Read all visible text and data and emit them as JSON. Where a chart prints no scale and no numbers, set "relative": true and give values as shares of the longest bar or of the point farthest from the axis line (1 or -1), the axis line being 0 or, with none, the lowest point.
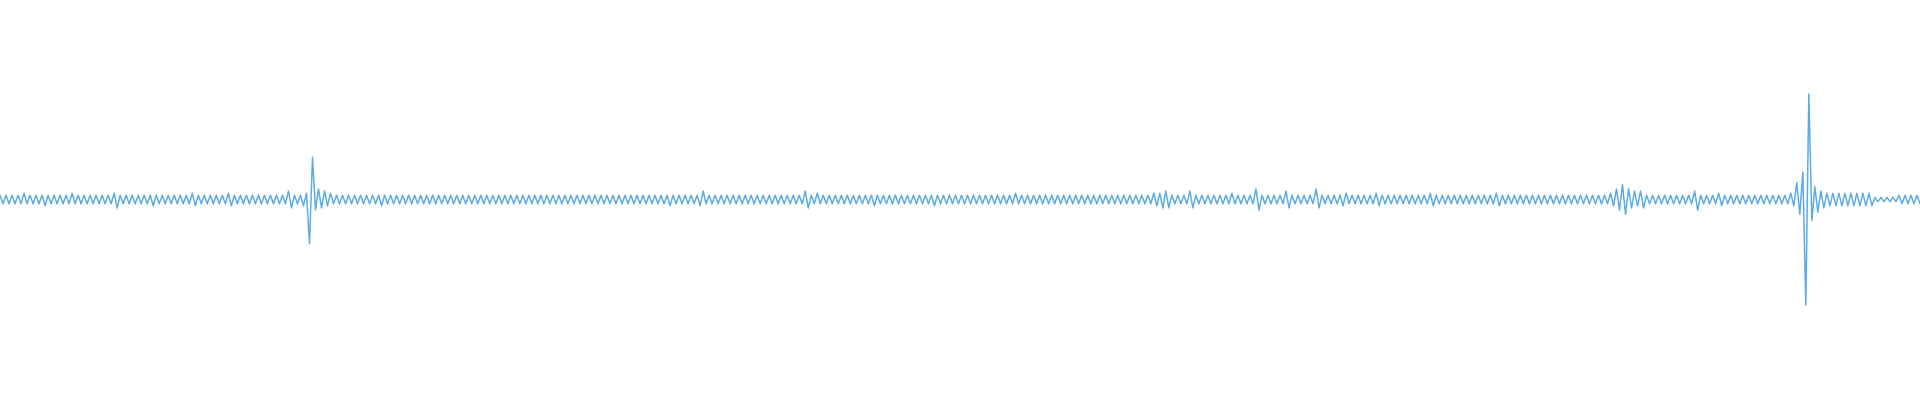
{
  "chart_data": {
    "type": "line",
    "relative": true,
    "marker": "none",
    "line_style": "solid",
    "color": "#5dabe2",
    "categories": [
      null,
      null,
      null,
      null,
      null,
      null,
      null,
      null,
      null,
      null,
      null,
      null,
      null,
      null,
      null,
      null,
      null,
      null,
      null,
      null,
      null,
      null,
      null,
      null,
      null,
      null,
      null,
      null,
      null,
      null,
      null,
      null,
      null,
      null,
      null,
      null,
      null,
      null,
      null,
      null,
      null,
      null,
      null,
      null,
      null,
      null,
      null,
      null,
      null,
      null,
      null,
      null,
      null,
      null,
      null,
      null,
      null,
      null,
      null,
      null,
      null,
      null,
      null,
      null,
      null,
      null,
      null,
      null,
      null,
      null,
      null,
      null,
      null,
      null,
      null,
      null,
      null,
      null,
      null,
      null,
      null,
      null,
      null,
      null,
      null,
      null,
      null,
      null,
      null,
      null,
      null,
      null,
      null,
      null,
      null,
      null,
      null,
      null,
      null,
      null,
      null,
      null,
      null,
      null,
      null,
      null,
      null,
      null,
      null,
      null,
      null,
      null,
      null,
      null,
      null,
      null,
      null,
      null,
      null,
      null,
      null,
      null,
      null,
      null,
      null,
      null,
      null,
      null,
      null,
      null,
      null,
      null,
      null,
      null,
      null,
      null,
      null,
      null,
      null,
      null,
      null,
      null,
      null,
      null,
      null,
      null,
      null,
      null,
      null,
      null,
      null,
      null,
      null,
      null,
      null,
      null,
      null,
      null,
      null,
      null,
      null,
      null,
      null,
      null,
      null,
      null,
      null,
      null,
      null,
      null,
      null,
      null,
      null,
      null,
      null,
      null,
      null,
      null,
      null,
      null,
      null,
      null,
      null,
      null,
      null,
      null,
      null,
      null,
      null,
      null,
      null,
      null,
      null,
      null,
      null,
      null,
      null,
      null,
      null,
      null,
      null,
      null,
      null,
      null,
      null,
      null,
      null,
      null,
      null,
      null,
      null,
      null,
      null,
      null,
      null,
      null,
      null,
      null,
      null,
      null,
      null,
      null,
      null,
      null,
      null,
      null,
      null,
      null,
      null,
      null,
      null,
      null,
      null,
      null,
      null,
      null,
      null,
      null,
      null,
      null,
      null,
      null,
      null,
      null,
      null,
      null,
      null,
      null,
      null,
      null,
      null,
      null,
      null,
      null,
      null,
      null,
      null,
      null,
      null,
      null,
      null,
      null,
      null,
      null,
      null,
      null,
      null,
      null,
      null,
      null,
      null,
      null,
      null,
      null,
      null,
      null,
      null,
      null,
      null,
      null,
      null,
      null,
      null,
      null,
      null,
      null,
      null,
      null,
      null,
      null,
      null,
      null,
      null,
      null,
      null,
      null,
      null,
      null,
      null,
      null,
      null,
      null,
      null,
      null,
      null,
      null,
      null,
      null,
      null,
      null,
      null,
      null,
      null,
      null,
      null,
      null,
      null,
      null,
      null,
      null,
      null,
      null,
      null,
      null,
      null,
      null,
      null,
      null,
      null,
      null,
      null,
      null,
      null,
      null,
      null,
      null,
      null,
      null,
      null,
      null,
      null,
      null,
      null,
      null,
      null,
      null,
      null,
      null,
      null,
      null,
      null,
      null,
      null,
      null,
      null,
      null,
      null,
      null,
      null,
      null,
      null,
      null,
      null,
      null,
      null,
      null,
      null,
      null,
      null,
      null,
      null,
      null,
      null,
      null,
      null,
      null,
      null,
      null,
      null,
      null,
      null,
      null,
      null,
      null,
      null,
      null,
      null,
      null,
      null,
      null,
      null,
      null,
      null,
      null,
      null,
      null,
      null,
      null,
      null,
      null,
      null,
      null,
      null,
      null,
      null,
      null,
      null,
      null,
      null,
      null,
      null,
      null,
      null,
      null,
      null,
      null,
      null,
      null,
      null,
      null,
      null,
      null,
      null,
      null,
      null,
      null,
      null,
      null,
      null,
      null,
      null,
      null,
      null,
      null,
      null,
      null,
      null,
      null,
      null,
      null,
      null,
      null,
      null,
      null,
      null,
      null,
      null,
      null,
      null,
      null,
      null,
      null,
      null,
      null,
      null,
      null,
      null,
      null,
      null,
      null,
      null,
      null,
      null,
      null,
      null,
      null,
      null,
      null,
      null,
      null,
      null,
      null,
      null,
      null,
      null,
      null,
      null,
      null,
      null,
      null,
      null,
      null,
      null,
      null,
      null,
      null,
      null,
      null,
      null,
      null,
      null,
      null,
      null,
      null,
      null,
      null,
      null,
      null,
      null,
      null,
      null,
      null,
      null,
      null,
      null,
      null,
      null,
      null,
      null,
      null,
      null,
      null,
      null,
      null,
      null,
      null,
      null,
      null,
      null,
      null,
      null,
      null,
      null,
      null,
      null,
      null,
      null,
      null,
      null,
      null,
      null,
      null,
      null,
      null,
      null,
      null,
      null,
      null,
      null,
      null,
      null,
      null,
      null,
      null,
      null,
      null,
      null,
      null,
      null,
      null,
      null,
      null,
      null,
      null,
      null,
      null,
      null,
      null,
      null,
      null,
      null,
      null,
      null,
      null,
      null,
      null,
      null,
      null,
      null,
      null,
      null,
      null,
      null,
      null,
      null,
      null,
      null,
      null,
      null,
      null,
      null,
      null,
      null,
      null,
      null,
      null,
      null,
      null,
      null,
      null,
      null,
      null,
      null,
      null,
      null,
      null,
      null,
      null,
      null,
      null,
      null,
      null,
      null,
      null,
      null,
      null,
      null,
      null,
      null,
      null,
      null,
      null,
      null,
      null,
      null,
      null,
      null,
      null,
      null,
      null,
      null,
      null,
      null,
      null,
      null,
      null,
      null,
      null,
      null,
      null,
      null,
      null,
      null,
      null,
      null,
      null,
      null,
      null,
      null,
      null
    ],
    "values": [
      0.52,
      0.48,
      0.52,
      0.48,
      0.52,
      0.48,
      0.52,
      0.48,
      0.53,
      0.48,
      0.52,
      0.48,
      0.52,
      0.48,
      0.52,
      0.47,
      0.52,
      0.48,
      0.52,
      0.48,
      0.52,
      0.48,
      0.52,
      0.48,
      0.53,
      0.48,
      0.52,
      0.48,
      0.52,
      0.48,
      0.52,
      0.48,
      0.52,
      0.48,
      0.52,
      0.48,
      0.52,
      0.48,
      0.53,
      0.46,
      0.52,
      0.48,
      0.52,
      0.48,
      0.52,
      0.48,
      0.52,
      0.48,
      0.52,
      0.48,
      0.52,
      0.47,
      0.52,
      0.48,
      0.52,
      0.48,
      0.52,
      0.48,
      0.52,
      0.48,
      0.52,
      0.48,
      0.52,
      0.48,
      0.53,
      0.47,
      0.52,
      0.48,
      0.52,
      0.48,
      0.52,
      0.48,
      0.52,
      0.48,
      0.52,
      0.48,
      0.53,
      0.47,
      0.52,
      0.48,
      0.52,
      0.48,
      0.52,
      0.48,
      0.52,
      0.48,
      0.52,
      0.48,
      0.52,
      0.48,
      0.52,
      0.48,
      0.52,
      0.48,
      0.52,
      0.48,
      0.54,
      0.46,
      0.52,
      0.48,
      0.52,
      0.47,
      0.53,
      0.29,
      0.7,
      0.45,
      0.55,
      0.46,
      0.54,
      0.47,
      0.53,
      0.48,
      0.52,
      0.48,
      0.52,
      0.48,
      0.52,
      0.48,
      0.52,
      0.48,
      0.52,
      0.48,
      0.52,
      0.48,
      0.52,
      0.48,
      0.52,
      0.47,
      0.52,
      0.48,
      0.52,
      0.48,
      0.52,
      0.48,
      0.52,
      0.48,
      0.52,
      0.48,
      0.52,
      0.48,
      0.52,
      0.48,
      0.52,
      0.48,
      0.52,
      0.48,
      0.52,
      0.48,
      0.52,
      0.48,
      0.52,
      0.48,
      0.52,
      0.48,
      0.52,
      0.48,
      0.52,
      0.48,
      0.52,
      0.48,
      0.52,
      0.48,
      0.52,
      0.48,
      0.52,
      0.48,
      0.52,
      0.48,
      0.52,
      0.48,
      0.52,
      0.48,
      0.52,
      0.48,
      0.52,
      0.48,
      0.52,
      0.48,
      0.52,
      0.48,
      0.52,
      0.48,
      0.52,
      0.48,
      0.52,
      0.48,
      0.52,
      0.48,
      0.52,
      0.48,
      0.52,
      0.48,
      0.52,
      0.48,
      0.52,
      0.48,
      0.52,
      0.48,
      0.52,
      0.48,
      0.52,
      0.48,
      0.52,
      0.48,
      0.52,
      0.48,
      0.52,
      0.48,
      0.52,
      0.48,
      0.52,
      0.48,
      0.52,
      0.48,
      0.52,
      0.48,
      0.52,
      0.48,
      0.52,
      0.48,
      0.52,
      0.48,
      0.52,
      0.47,
      0.52,
      0.48,
      0.52,
      0.48,
      0.52,
      0.48,
      0.52,
      0.48,
      0.52,
      0.47,
      0.54,
      0.48,
      0.52,
      0.48,
      0.52,
      0.48,
      0.52,
      0.48,
      0.52,
      0.48,
      0.52,
      0.48,
      0.52,
      0.48,
      0.52,
      0.48,
      0.52,
      0.48,
      0.52,
      0.48,
      0.52,
      0.48,
      0.52,
      0.48,
      0.52,
      0.48,
      0.52,
      0.48,
      0.52,
      0.48,
      0.52,
      0.48,
      0.52,
      0.48,
      0.54,
      0.46,
      0.52,
      0.48,
      0.53,
      0.48,
      0.52,
      0.48,
      0.52,
      0.48,
      0.52,
      0.48,
      0.52,
      0.48,
      0.52,
      0.48,
      0.52,
      0.48,
      0.52,
      0.48,
      0.52,
      0.48,
      0.52,
      0.47,
      0.52,
      0.48,
      0.52,
      0.48,
      0.52,
      0.48,
      0.52,
      0.48,
      0.52,
      0.48,
      0.52,
      0.48,
      0.52,
      0.48,
      0.52,
      0.48,
      0.52,
      0.48,
      0.52,
      0.47,
      0.52,
      0.48,
      0.52,
      0.48,
      0.52,
      0.48,
      0.52,
      0.48,
      0.52,
      0.48,
      0.52,
      0.48,
      0.52,
      0.48,
      0.52,
      0.48,
      0.52,
      0.48,
      0.52,
      0.48,
      0.52,
      0.48,
      0.52,
      0.48,
      0.52,
      0.48,
      0.53,
      0.48,
      0.52,
      0.48,
      0.52,
      0.48,
      0.52,
      0.48,
      0.52,
      0.48,
      0.52,
      0.48,
      0.52,
      0.48,
      0.52,
      0.48,
      0.52,
      0.48,
      0.52,
      0.48,
      0.52,
      0.48,
      0.52,
      0.48,
      0.52,
      0.48,
      0.52,
      0.48,
      0.52,
      0.48,
      0.52,
      0.48,
      0.52,
      0.48,
      0.52,
      0.48,
      0.52,
      0.48,
      0.52,
      0.48,
      0.52,
      0.48,
      0.52,
      0.48,
      0.52,
      0.48,
      0.53,
      0.47,
      0.53,
      0.46,
      0.54,
      0.46,
      0.52,
      0.48,
      0.52,
      0.48,
      0.52,
      0.48,
      0.54,
      0.46,
      0.52,
      0.48,
      0.52,
      0.48,
      0.52,
      0.48,
      0.52,
      0.48,
      0.52,
      0.48,
      0.52,
      0.48,
      0.53,
      0.48,
      0.52,
      0.48,
      0.52,
      0.48,
      0.52,
      0.48,
      0.55,
      0.45,
      0.52,
      0.48,
      0.52,
      0.48,
      0.52,
      0.48,
      0.52,
      0.48,
      0.54,
      0.46,
      0.52,
      0.48,
      0.52,
      0.48,
      0.52,
      0.48,
      0.52,
      0.48,
      0.55,
      0.46,
      0.52,
      0.48,
      0.52,
      0.48,
      0.52,
      0.48,
      0.52,
      0.47,
      0.53,
      0.48,
      0.52,
      0.48,
      0.52,
      0.48,
      0.52,
      0.48,
      0.52,
      0.48,
      0.53,
      0.47,
      0.52,
      0.48,
      0.52,
      0.48,
      0.52,
      0.48,
      0.52,
      0.48,
      0.52,
      0.48,
      0.52,
      0.48,
      0.52,
      0.48,
      0.52,
      0.48,
      0.53,
      0.47,
      0.52,
      0.48,
      0.52,
      0.48,
      0.52,
      0.48,
      0.52,
      0.48,
      0.52,
      0.48,
      0.52,
      0.48,
      0.52,
      0.48,
      0.52,
      0.48,
      0.52,
      0.48,
      0.52,
      0.48,
      0.53,
      0.47,
      0.52,
      0.48,
      0.52,
      0.48,
      0.52,
      0.48,
      0.52,
      0.48,
      0.52,
      0.48,
      0.52,
      0.48,
      0.52,
      0.48,
      0.52,
      0.48,
      0.52,
      0.48,
      0.52,
      0.48,
      0.52,
      0.48,
      0.52,
      0.48,
      0.52,
      0.48,
      0.52,
      0.48,
      0.52,
      0.48,
      0.52,
      0.48,
      0.52,
      0.48,
      0.52,
      0.48,
      0.53,
      0.47,
      0.55,
      0.45,
      0.57,
      0.43,
      0.55,
      0.46,
      0.54,
      0.47,
      0.54,
      0.46,
      0.52,
      0.48,
      0.52,
      0.48,
      0.52,
      0.48,
      0.52,
      0.48,
      0.52,
      0.48,
      0.52,
      0.48,
      0.52,
      0.48,
      0.52,
      0.48,
      0.54,
      0.45,
      0.52,
      0.48,
      0.52,
      0.48,
      0.52,
      0.48,
      0.53,
      0.47,
      0.52,
      0.48,
      0.52,
      0.48,
      0.52,
      0.48,
      0.52,
      0.48,
      0.52,
      0.48,
      0.52,
      0.48,
      0.52,
      0.48,
      0.52,
      0.48,
      0.52,
      0.48,
      0.52,
      0.48,
      0.52,
      0.48,
      0.53,
      0.47,
      0.58,
      0.43,
      0.63,
      0,
      1,
      0.4,
      0.56,
      0.44,
      0.54,
      0.46,
      0.53,
      0.47,
      0.53,
      0.47,
      0.53,
      0.47,
      0.53,
      0.47,
      0.53,
      0.47,
      0.53,
      0.47,
      0.53,
      0.47,
      0.53,
      0.47,
      0.51,
      0.49,
      0.51,
      0.49,
      0.51,
      0.49,
      0.51,
      0.49,
      0.52,
      0.48,
      0.52,
      0.48,
      0.52,
      0.48,
      0.52,
      0.48
    ]
  }
}
